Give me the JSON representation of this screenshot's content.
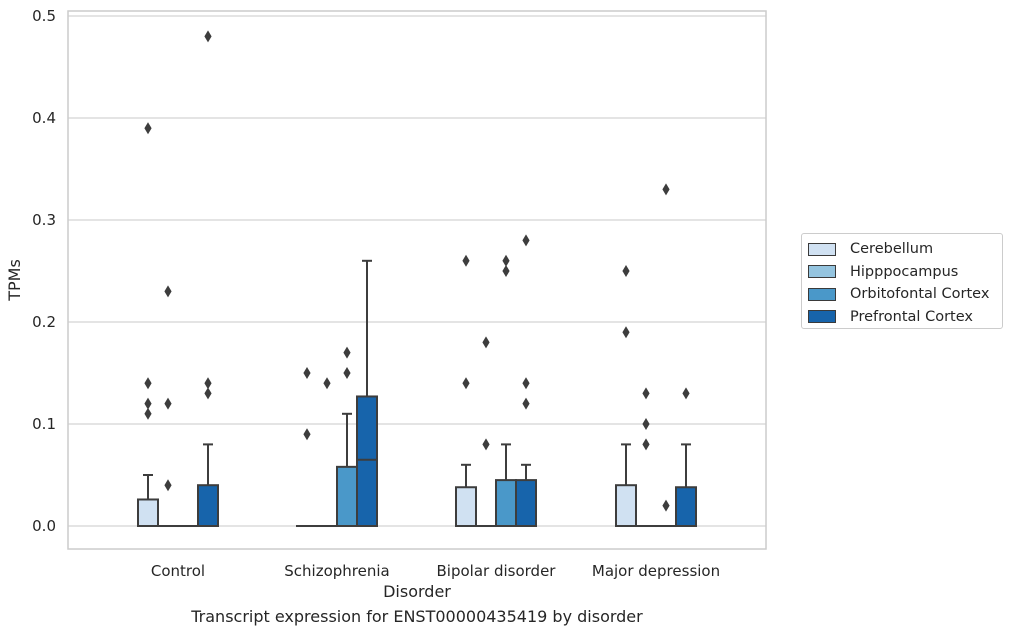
{
  "chart_data": {
    "type": "box",
    "title": "",
    "caption": "Transcript expression for ENST00000435419 by disorder",
    "xlabel": "Disorder",
    "ylabel": "TPMs",
    "ylim": [
      -0.023,
      0.505
    ],
    "yticks": [
      "0.0",
      "0.1",
      "0.2",
      "0.3",
      "0.4",
      "0.5"
    ],
    "ytick_values": [
      0.0,
      0.1,
      0.2,
      0.3,
      0.4,
      0.5
    ],
    "grid": "horizontal",
    "legend_position": "right",
    "categories": [
      "Control",
      "Schizophrenia",
      "Bipolar disorder",
      "Major depression"
    ],
    "series": [
      {
        "name": "Cerebellum",
        "color": "#d0e1f2",
        "boxes": [
          {
            "q1": 0,
            "median": 0,
            "q3": 0.026,
            "whisker_low": 0,
            "whisker_high": 0.05,
            "outliers": [
              0.11,
              0.12,
              0.14,
              0.39
            ]
          },
          {
            "q1": 0,
            "median": 0,
            "q3": 0,
            "whisker_low": 0,
            "whisker_high": 0,
            "outliers": [
              0.09,
              0.15
            ]
          },
          {
            "q1": 0,
            "median": 0,
            "q3": 0.038,
            "whisker_low": 0,
            "whisker_high": 0.06,
            "outliers": [
              0.14,
              0.26
            ]
          },
          {
            "q1": 0,
            "median": 0,
            "q3": 0.04,
            "whisker_low": 0,
            "whisker_high": 0.08,
            "outliers": [
              0.19,
              0.25
            ]
          }
        ]
      },
      {
        "name": "Hipppocampus",
        "color": "#94c4df",
        "boxes": [
          {
            "q1": 0,
            "median": 0,
            "q3": 0,
            "whisker_low": 0,
            "whisker_high": 0,
            "outliers": [
              0.04,
              0.12,
              0.23
            ]
          },
          {
            "q1": 0,
            "median": 0,
            "q3": 0,
            "whisker_low": 0,
            "whisker_high": 0,
            "outliers": [
              0.14
            ]
          },
          {
            "q1": 0,
            "median": 0,
            "q3": 0,
            "whisker_low": 0,
            "whisker_high": 0,
            "outliers": [
              0.08,
              0.18
            ]
          },
          {
            "q1": 0,
            "median": 0,
            "q3": 0,
            "whisker_low": 0,
            "whisker_high": 0,
            "outliers": [
              0.08,
              0.1,
              0.13
            ]
          }
        ]
      },
      {
        "name": "Orbitofontal Cortex",
        "color": "#4a98c9",
        "boxes": [
          {
            "q1": 0,
            "median": 0,
            "q3": 0,
            "whisker_low": 0,
            "whisker_high": 0,
            "outliers": []
          },
          {
            "q1": 0,
            "median": 0,
            "q3": 0.058,
            "whisker_low": 0,
            "whisker_high": 0.11,
            "outliers": [
              0.15,
              0.17
            ]
          },
          {
            "q1": 0,
            "median": 0,
            "q3": 0.045,
            "whisker_low": 0,
            "whisker_high": 0.08,
            "outliers": [
              0.25,
              0.26
            ]
          },
          {
            "q1": 0,
            "median": 0,
            "q3": 0,
            "whisker_low": 0,
            "whisker_high": 0,
            "outliers": [
              0.02,
              0.33
            ]
          }
        ]
      },
      {
        "name": "Prefrontal Cortex",
        "color": "#1764ab",
        "boxes": [
          {
            "q1": 0,
            "median": 0,
            "q3": 0.04,
            "whisker_low": 0,
            "whisker_high": 0.08,
            "outliers": [
              0.13,
              0.14,
              0.48
            ]
          },
          {
            "q1": 0,
            "median": 0.065,
            "q3": 0.127,
            "whisker_low": 0,
            "whisker_high": 0.26,
            "outliers": []
          },
          {
            "q1": 0,
            "median": 0,
            "q3": 0.045,
            "whisker_low": 0,
            "whisker_high": 0.06,
            "outliers": [
              0.12,
              0.14,
              0.28
            ]
          },
          {
            "q1": 0,
            "median": 0,
            "q3": 0.038,
            "whisker_low": 0,
            "whisker_high": 0.08,
            "outliers": [
              0.13
            ]
          }
        ]
      }
    ]
  }
}
